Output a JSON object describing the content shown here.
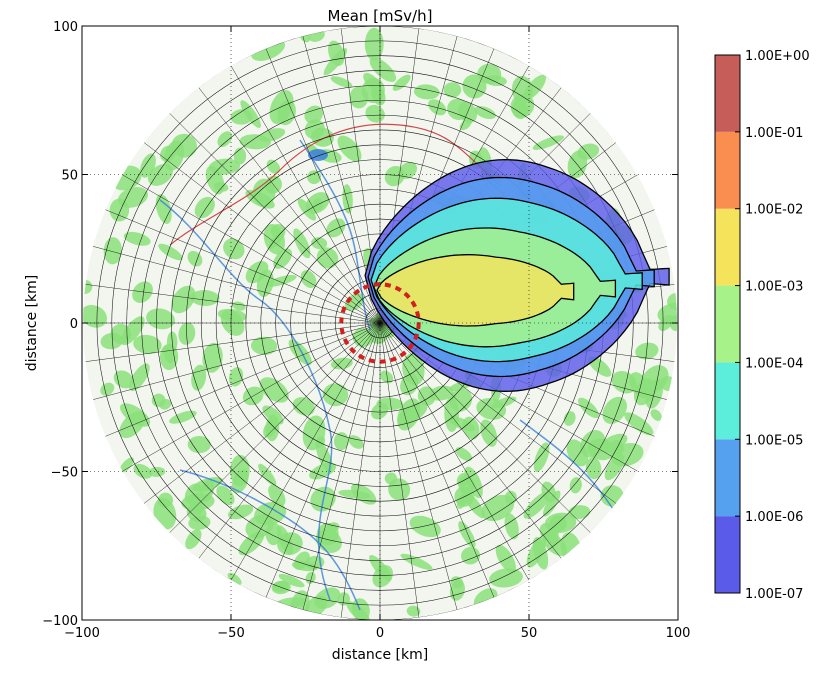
{
  "chart_data": {
    "type": "contour",
    "title": "Mean [mSv/h]",
    "xlabel": "distance [km]",
    "ylabel": "distance [km]",
    "xlim": [
      -100,
      100
    ],
    "ylim": [
      -100,
      100
    ],
    "x_ticks": [
      -100,
      -50,
      0,
      50,
      100
    ],
    "y_ticks": [
      -100,
      -50,
      0,
      50,
      100
    ],
    "x_tick_labels": [
      "−100",
      "−50",
      "0",
      "50",
      "100"
    ],
    "y_tick_labels": [
      "−100",
      "−50",
      "0",
      "50",
      "100"
    ],
    "colorbar": {
      "scale": "log",
      "levels": [
        1e-07,
        1e-06,
        1e-05,
        0.0001,
        0.001,
        0.01,
        0.1,
        1.0
      ],
      "labels": [
        "1.00E-07",
        "1.00E-06",
        "1.00E-05",
        "1.00E-04",
        "1.00E-03",
        "1.00E-02",
        "1.00E-01",
        "1.00E+00"
      ],
      "colors": [
        "#5b5bea",
        "#56a0f0",
        "#5ceedb",
        "#a8f28a",
        "#f5e35c",
        "#f98e50",
        "#c65d59"
      ]
    },
    "plume": {
      "direction": "east",
      "bands": [
        {
          "level_min": 1e-07,
          "x_range": [
            -5,
            97
          ],
          "y_range": [
            -25,
            53
          ]
        },
        {
          "level_min": 1e-06,
          "x_range": [
            -4,
            92
          ],
          "y_range": [
            -20,
            47
          ]
        },
        {
          "level_min": 1e-05,
          "x_range": [
            -3,
            88
          ],
          "y_range": [
            -15,
            40
          ]
        },
        {
          "level_min": 0.0001,
          "x_range": [
            -2,
            79
          ],
          "y_range": [
            -10,
            30
          ]
        },
        {
          "level_min": 0.001,
          "x_range": [
            -1,
            65
          ],
          "y_range": [
            -3,
            21
          ]
        }
      ]
    },
    "exclusion_circle_radius_km": 13,
    "map_radius_km": 100
  }
}
